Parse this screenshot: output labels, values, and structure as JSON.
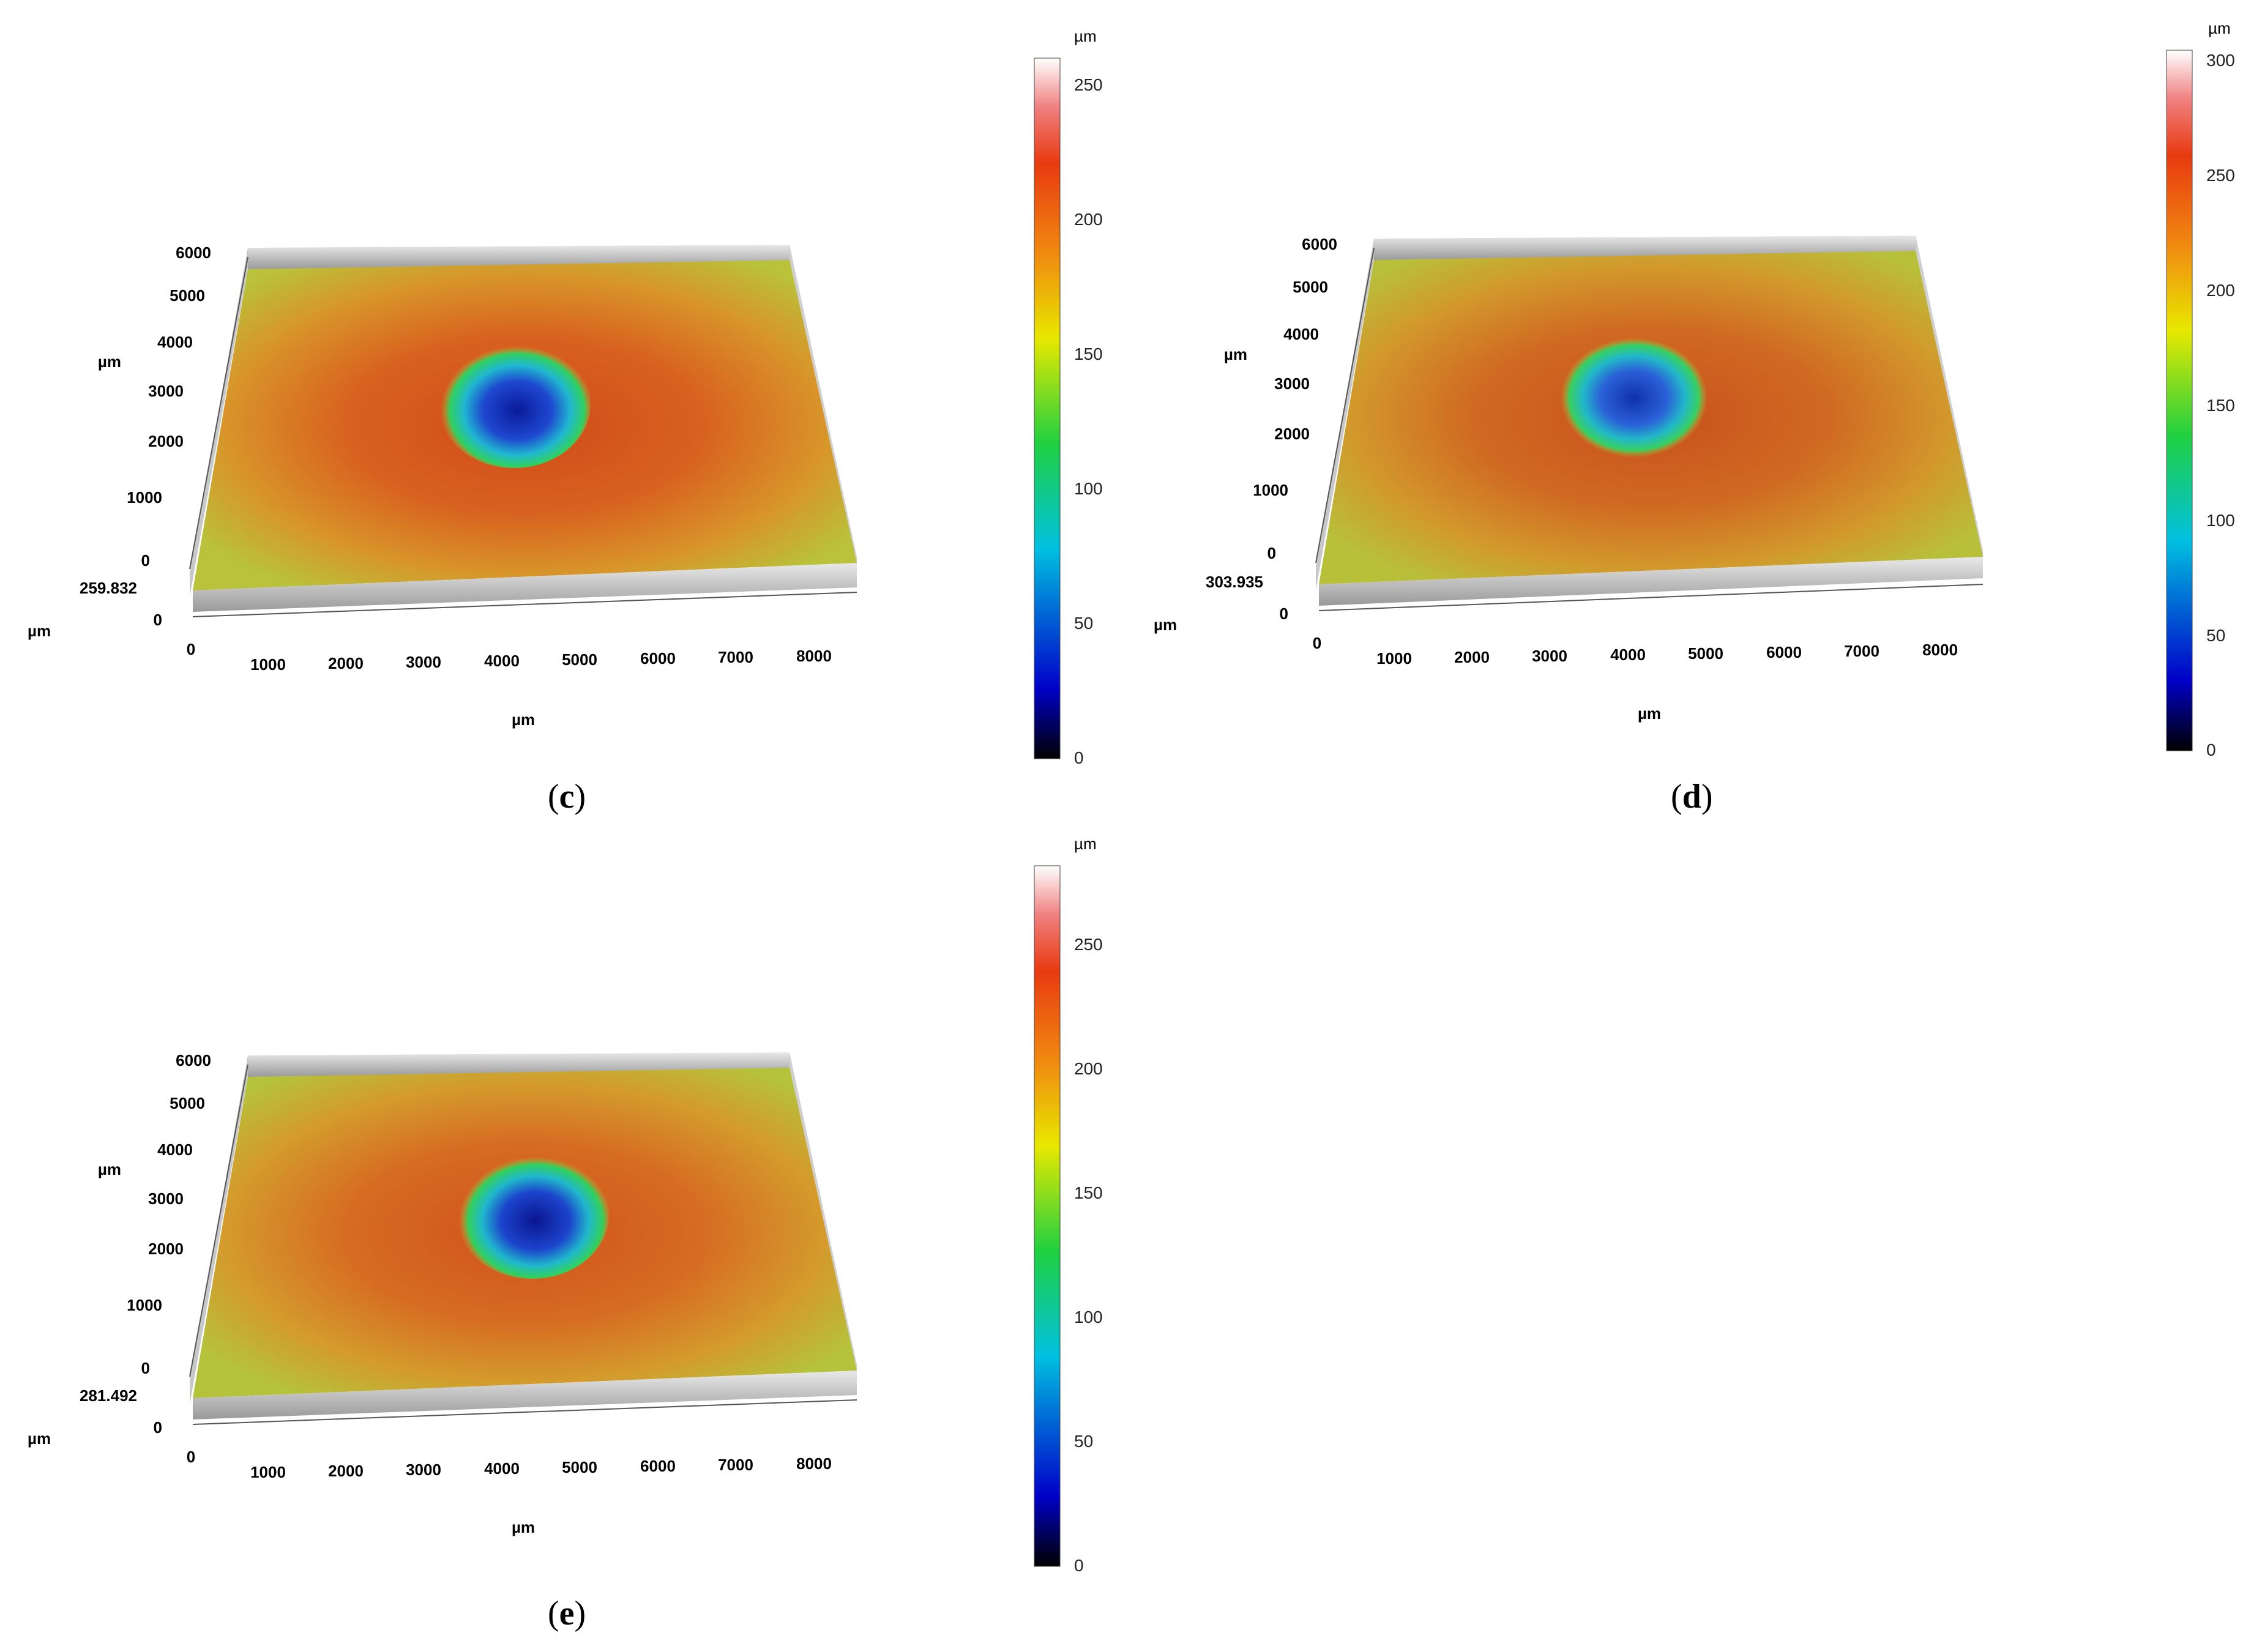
{
  "panels": [
    {
      "id": "c",
      "caption_letter": "c",
      "x_axis": {
        "unit": "µm",
        "ticks": [
          "0",
          "1000",
          "2000",
          "3000",
          "4000",
          "5000",
          "6000",
          "7000",
          "8000"
        ]
      },
      "y_axis": {
        "unit": "µm",
        "ticks": [
          "0",
          "1000",
          "2000",
          "3000",
          "4000",
          "5000",
          "6000"
        ]
      },
      "z_axis": {
        "unit": "µm",
        "max_label": "259.832",
        "min_label": "0"
      },
      "colorbar": {
        "unit": "µm",
        "ticks": [
          "0",
          "50",
          "100",
          "150",
          "200",
          "250"
        ],
        "max": 260
      }
    },
    {
      "id": "d",
      "caption_letter": "d",
      "x_axis": {
        "unit": "µm",
        "ticks": [
          "0",
          "1000",
          "2000",
          "3000",
          "4000",
          "5000",
          "6000",
          "7000",
          "8000"
        ]
      },
      "y_axis": {
        "unit": "µm",
        "ticks": [
          "0",
          "1000",
          "2000",
          "3000",
          "4000",
          "5000",
          "6000"
        ]
      },
      "z_axis": {
        "unit": "µm",
        "max_label": "303.935",
        "min_label": "0"
      },
      "colorbar": {
        "unit": "µm",
        "ticks": [
          "0",
          "50",
          "100",
          "150",
          "200",
          "250",
          "300"
        ],
        "max": 305
      }
    },
    {
      "id": "e",
      "caption_letter": "e",
      "x_axis": {
        "unit": "µm",
        "ticks": [
          "0",
          "1000",
          "2000",
          "3000",
          "4000",
          "5000",
          "6000",
          "7000",
          "8000"
        ]
      },
      "y_axis": {
        "unit": "µm",
        "ticks": [
          "0",
          "1000",
          "2000",
          "3000",
          "4000",
          "5000",
          "6000"
        ]
      },
      "z_axis": {
        "unit": "µm",
        "max_label": "281.492",
        "min_label": "0"
      },
      "colorbar": {
        "unit": "µm",
        "ticks": [
          "0",
          "50",
          "100",
          "150",
          "200",
          "250"
        ],
        "max": 282
      }
    }
  ],
  "colors": {
    "surface_orange": "#d9661f",
    "surface_yellow": "#c8c43a",
    "pit_blue": "#1e3fc8",
    "pit_cyan": "#22c8c8",
    "pit_green": "#33cc44"
  }
}
